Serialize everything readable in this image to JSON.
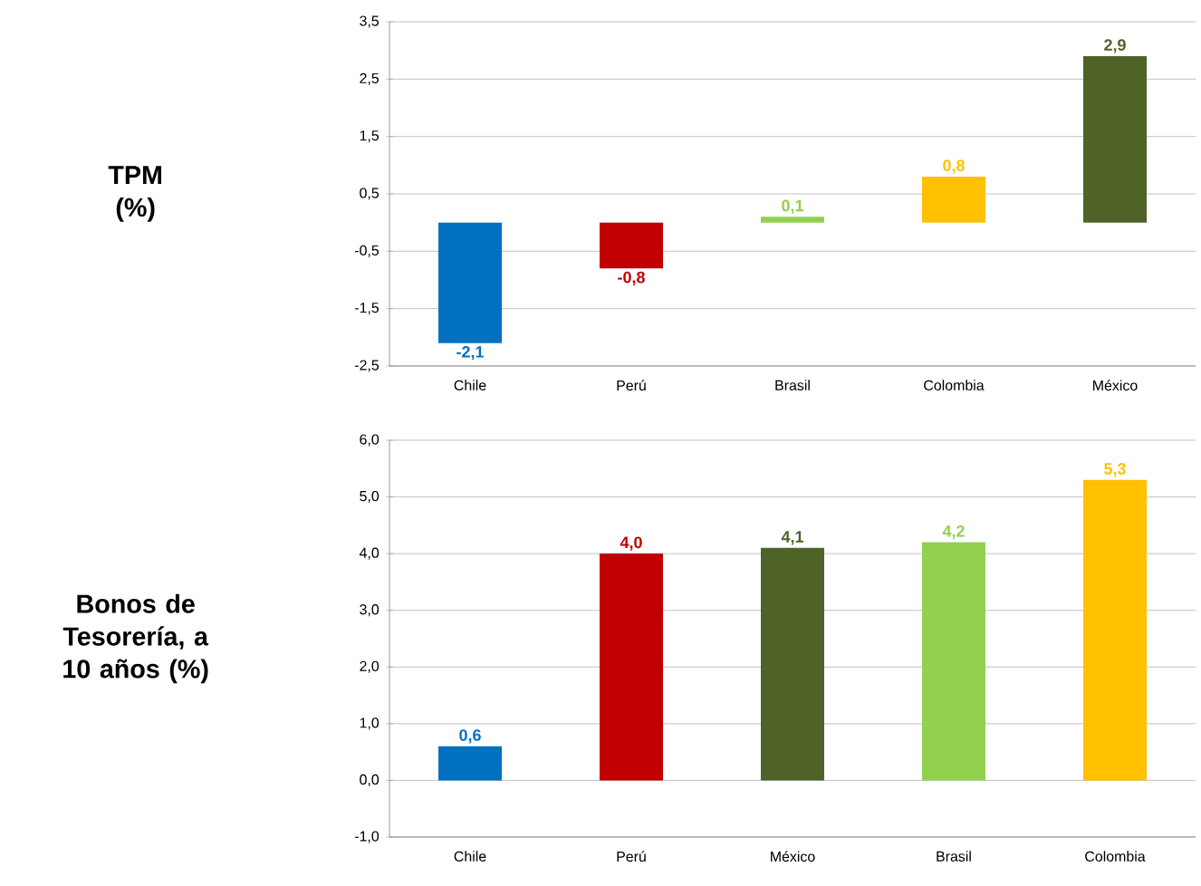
{
  "chart_data": [
    {
      "type": "bar",
      "ylabel": "TPM (%)",
      "categories": [
        "Chile",
        "Perú",
        "Brasil",
        "Colombia",
        "México"
      ],
      "values": [
        -2.1,
        -0.8,
        0.1,
        0.8,
        2.9
      ],
      "colors": [
        "#0070c0",
        "#c00000",
        "#92d050",
        "#ffc000",
        "#4f6228"
      ],
      "value_labels": [
        "-2,1",
        "-0,8",
        "0,1",
        "0,8",
        "2,9"
      ],
      "ylim": [
        -2.5,
        3.5
      ],
      "yticks": [
        {
          "value": -2.5,
          "label": "-2,5"
        },
        {
          "value": -1.5,
          "label": "-1,5"
        },
        {
          "value": -0.5,
          "label": "-0,5"
        },
        {
          "value": 0.5,
          "label": "0,5"
        },
        {
          "value": 1.5,
          "label": "1,5"
        },
        {
          "value": 2.5,
          "label": "2,5"
        },
        {
          "value": 3.5,
          "label": "3,5"
        }
      ],
      "grid": "y"
    },
    {
      "type": "bar",
      "ylabel": "Bonos de Tesorería, a 10 años (%)",
      "categories": [
        "Chile",
        "Perú",
        "México",
        "Brasil",
        "Colombia"
      ],
      "values": [
        0.6,
        4.0,
        4.1,
        4.2,
        5.3
      ],
      "colors": [
        "#0070c0",
        "#c00000",
        "#4f6228",
        "#92d050",
        "#ffc000"
      ],
      "value_labels": [
        "0,6",
        "4,0",
        "4,1",
        "4,2",
        "5,3"
      ],
      "ylim": [
        -1,
        6
      ],
      "yticks": [
        {
          "value": -1,
          "label": "-1,0"
        },
        {
          "value": 0,
          "label": "0,0"
        },
        {
          "value": 1,
          "label": "1,0"
        },
        {
          "value": 2,
          "label": "2,0"
        },
        {
          "value": 3,
          "label": "3,0"
        },
        {
          "value": 4,
          "label": "4,0"
        },
        {
          "value": 5,
          "label": "5,0"
        },
        {
          "value": 6,
          "label": "6,0"
        }
      ],
      "grid": "y"
    }
  ]
}
